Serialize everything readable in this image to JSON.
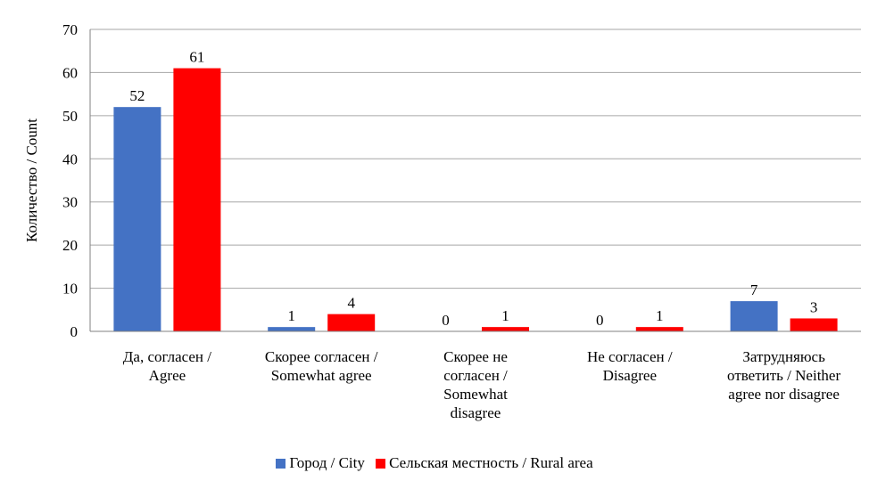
{
  "chart_data": {
    "type": "bar",
    "categories": [
      [
        "Да, согласен /",
        "Agree"
      ],
      [
        "Скорее согласен /",
        "Somewhat agree"
      ],
      [
        "Скорее не",
        "согласен /",
        "Somewhat",
        "disagree"
      ],
      [
        "Не согласен /",
        "Disagree"
      ],
      [
        "Затрудняюсь",
        "ответить / Neither",
        "agree nor disagree"
      ]
    ],
    "series": [
      {
        "name": "Город / City",
        "color": "#4472C4",
        "values": [
          52,
          1,
          0,
          0,
          7
        ]
      },
      {
        "name": "Сельская местность / Rural area",
        "color": "#FF0000",
        "values": [
          61,
          4,
          1,
          1,
          3
        ]
      }
    ],
    "ylabel": "Количество / Count",
    "ylim": [
      0,
      70
    ],
    "yticks": [
      0,
      10,
      20,
      30,
      40,
      50,
      60,
      70
    ],
    "grid": true,
    "legend_position": "bottom"
  }
}
